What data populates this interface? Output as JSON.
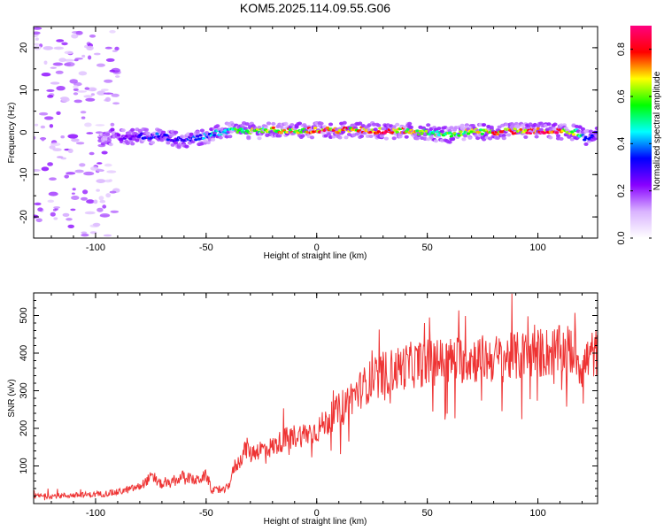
{
  "title": "KOM5.2025.114.09.55.G06",
  "chart_data": [
    {
      "type": "heatmap",
      "xlabel": "Height of straight line (km)",
      "ylabel": "Frequency (Hz)",
      "xlim": [
        -128,
        127
      ],
      "ylim": [
        -25,
        25
      ],
      "x_ticks": [
        -100,
        -50,
        0,
        50,
        100
      ],
      "y_ticks": [
        -20,
        -10,
        0,
        10,
        20
      ],
      "grid": false,
      "colorbar": {
        "label": "Normalized spectral amplitude",
        "range": [
          0,
          0.9
        ],
        "ticks": [
          0.0,
          0.2,
          0.4,
          0.6,
          0.8
        ],
        "colormap": [
          "#ffffff",
          "#d9b3ff",
          "#8800ff",
          "#0000ff",
          "#00ffff",
          "#00ff00",
          "#ffff00",
          "#ff0000",
          "#ff0080"
        ]
      },
      "ridge": {
        "x": [
          -98,
          -90,
          -80,
          -72,
          -65,
          -60,
          -55,
          -50,
          -45,
          -40,
          -35,
          -30,
          -25,
          -20,
          -10,
          0,
          10,
          20,
          30,
          40,
          50,
          60,
          70,
          80,
          90,
          100,
          110,
          118,
          122,
          127
        ],
        "frequency": [
          -1.0,
          -1.2,
          -0.8,
          -0.9,
          -1.5,
          -2.0,
          -1.4,
          -0.8,
          -0.2,
          0.4,
          0.5,
          0.3,
          0.4,
          0.5,
          0.4,
          0.5,
          0.5,
          0.6,
          0.3,
          0.4,
          0.0,
          -0.6,
          0.2,
          0.0,
          0.3,
          0.4,
          0.2,
          0.0,
          -1.5,
          -0.3
        ],
        "amplitude": [
          0.1,
          0.2,
          0.3,
          0.35,
          0.3,
          0.3,
          0.35,
          0.4,
          0.45,
          0.5,
          0.6,
          0.65,
          0.6,
          0.7,
          0.65,
          0.8,
          0.75,
          0.7,
          0.85,
          0.7,
          0.6,
          0.55,
          0.65,
          0.7,
          0.75,
          0.85,
          0.8,
          0.6,
          0.3,
          0.3
        ]
      },
      "noise_region": {
        "x_range": [
          -128,
          -90
        ],
        "frequency_range": [
          -25,
          25
        ],
        "amplitude": 0.1
      }
    },
    {
      "type": "line",
      "xlabel": "Height of straight line (km)",
      "ylabel": "SNR (v/v)",
      "xlim": [
        -128,
        127
      ],
      "ylim": [
        0,
        560
      ],
      "x_ticks": [
        -100,
        -50,
        0,
        50,
        100
      ],
      "y_ticks": [
        100,
        200,
        300,
        400,
        500
      ],
      "grid": false,
      "series": [
        {
          "color": "#ee3333",
          "x": [
            -128,
            -120,
            -110,
            -100,
            -90,
            -80,
            -75,
            -70,
            -65,
            -60,
            -55,
            -50,
            -47,
            -45,
            -42,
            -40,
            -37,
            -35,
            -33,
            -31,
            -30,
            -28,
            -25,
            -20,
            -15,
            -10,
            -5,
            0,
            5,
            10,
            15,
            20,
            25,
            30,
            40,
            50,
            60,
            70,
            80,
            90,
            100,
            110,
            115,
            118,
            120,
            122,
            125,
            127
          ],
          "y": [
            20,
            20,
            22,
            24,
            30,
            45,
            70,
            50,
            55,
            75,
            60,
            75,
            35,
            35,
            35,
            45,
            100,
            110,
            140,
            150,
            130,
            140,
            145,
            150,
            170,
            180,
            185,
            195,
            220,
            250,
            280,
            305,
            330,
            345,
            365,
            375,
            380,
            385,
            385,
            390,
            400,
            405,
            410,
            390,
            360,
            380,
            400,
            395
          ]
        }
      ]
    }
  ]
}
